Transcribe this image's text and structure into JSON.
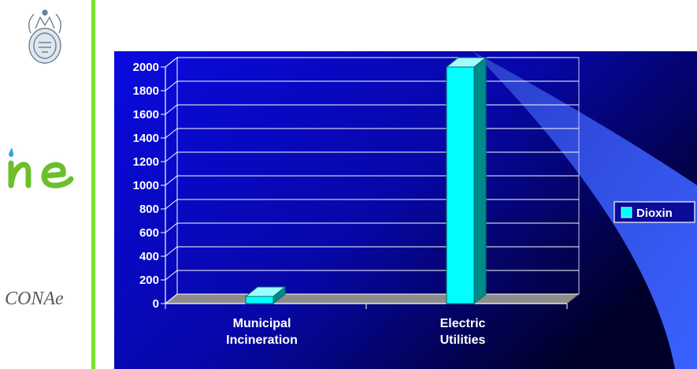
{
  "sidebar": {
    "logos": [
      {
        "name": "university-seal"
      },
      {
        "name": "ine-logo"
      },
      {
        "name": "conae-logo",
        "text": "CONAe"
      }
    ],
    "accent_color": "#7be32a"
  },
  "chart_data": {
    "type": "bar",
    "style": "3d",
    "categories": [
      "Municipal Incineration",
      "Electric Utilities"
    ],
    "category_lines": [
      [
        "Municipal",
        "Incineration"
      ],
      [
        "Electric",
        "Utilities"
      ]
    ],
    "series": [
      {
        "name": "Dioxin",
        "values": [
          60,
          2000
        ],
        "color": "#00ffff"
      }
    ],
    "ylim": [
      0,
      2000
    ],
    "yticks": [
      0,
      200,
      400,
      600,
      800,
      1000,
      1200,
      1400,
      1600,
      1800,
      2000
    ],
    "grid": true,
    "legend": "right",
    "title": "",
    "xlabel": "",
    "ylabel": ""
  }
}
